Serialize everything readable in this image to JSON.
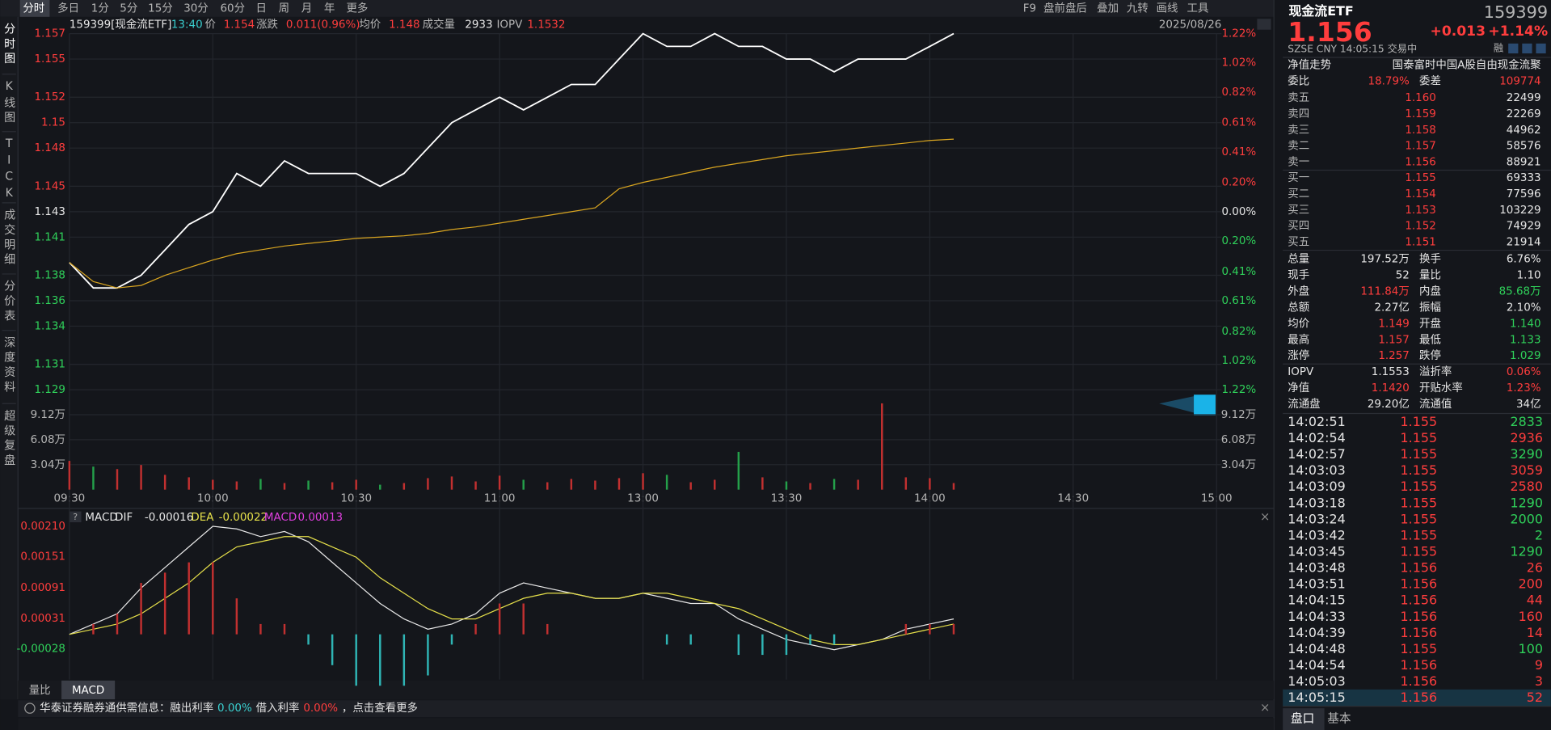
{
  "toolbar": {
    "tabs": [
      "分时",
      "多日",
      "1分",
      "5分",
      "15分",
      "30分",
      "60分",
      "日",
      "周",
      "月",
      "年",
      "更多"
    ],
    "tools": [
      "F9",
      "盘前盘后",
      "叠加",
      "九转",
      "画线",
      "工具"
    ]
  },
  "sidebar": [
    "分时图",
    "K线图",
    "TICK",
    "成交明细",
    "分价表",
    "深度资料",
    "超级复盘"
  ],
  "infobar": {
    "code": "159399[现金流ETF]",
    "time": "13:40",
    "items": [
      {
        "label": "价",
        "value": "1.154",
        "color": "red"
      },
      {
        "label": "涨跌",
        "value": "0.011(0.96%)",
        "color": "red"
      },
      {
        "label": "均价",
        "value": "1.148",
        "color": "red"
      },
      {
        "label": "成交量",
        "value": "2933",
        "color": "white"
      },
      {
        "label": "IOPV",
        "value": "1.1532",
        "color": "red"
      }
    ],
    "date": "2025/08/26"
  },
  "chart_data": [
    {
      "type": "line",
      "x": [
        "09:30",
        "09:35",
        "09:40",
        "09:45",
        "09:50",
        "09:55",
        "10:00",
        "10:05",
        "10:10",
        "10:15",
        "10:20",
        "10:25",
        "10:30",
        "10:35",
        "10:40",
        "10:45",
        "10:50",
        "10:55",
        "11:00",
        "11:05",
        "11:10",
        "11:15",
        "11:20",
        "11:25",
        "13:00",
        "13:05",
        "13:10",
        "13:15",
        "13:20",
        "13:25",
        "13:30",
        "13:35",
        "13:40",
        "13:45",
        "13:50",
        "13:55",
        "14:00",
        "14:05"
      ],
      "xticks": [
        "09:30",
        "10:00",
        "10:30",
        "11:00",
        "13:00",
        "13:30",
        "14:00",
        "14:30",
        "15:00"
      ],
      "series": [
        {
          "color": "#ffffff",
          "values": [
            1.139,
            1.137,
            1.137,
            1.138,
            1.14,
            1.142,
            1.143,
            1.146,
            1.145,
            1.147,
            1.146,
            1.146,
            1.146,
            1.145,
            1.146,
            1.148,
            1.15,
            1.151,
            1.152,
            1.151,
            1.152,
            1.153,
            1.153,
            1.155,
            1.157,
            1.156,
            1.156,
            1.157,
            1.156,
            1.156,
            1.155,
            1.155,
            1.154,
            1.155,
            1.155,
            1.155,
            1.156,
            1.157
          ]
        },
        {
          "color": "#d9a520",
          "values": [
            1.139,
            1.1375,
            1.137,
            1.1372,
            1.138,
            1.1386,
            1.1392,
            1.1397,
            1.14,
            1.1403,
            1.1405,
            1.1407,
            1.1409,
            1.141,
            1.1411,
            1.1413,
            1.1416,
            1.1418,
            1.1421,
            1.1424,
            1.1427,
            1.143,
            1.1433,
            1.1448,
            1.1453,
            1.1457,
            1.1461,
            1.1465,
            1.1468,
            1.1471,
            1.1474,
            1.1476,
            1.1478,
            1.148,
            1.1482,
            1.1484,
            1.1486,
            1.1487
          ]
        }
      ],
      "ylim": [
        1.129,
        1.157
      ],
      "yticks": [
        1.157,
        1.155,
        1.152,
        1.15,
        1.148,
        1.145,
        1.143,
        1.141,
        1.138,
        1.136,
        1.134,
        1.131,
        1.129
      ],
      "y2lim": [
        -1.22,
        1.22
      ],
      "y2ticks": [
        {
          "value": 1.22,
          "label": "1.22%"
        },
        {
          "value": 1.02,
          "label": "1.02%"
        },
        {
          "value": 0.82,
          "label": "0.82%"
        },
        {
          "value": 0.61,
          "label": "0.61%"
        },
        {
          "value": 0.41,
          "label": "0.41%"
        },
        {
          "value": 0.2,
          "label": "0.20%"
        },
        {
          "value": 0,
          "label": "0.00%"
        },
        {
          "value": -0.2,
          "label": "0.20%"
        },
        {
          "value": -0.41,
          "label": "0.41%"
        },
        {
          "value": -0.61,
          "label": "0.61%"
        },
        {
          "value": -0.82,
          "label": "0.82%"
        },
        {
          "value": -1.02,
          "label": "1.02%"
        },
        {
          "value": -1.22,
          "label": "1.22%"
        }
      ],
      "grid": true
    },
    {
      "type": "bar",
      "x": [
        "09:30",
        "09:35",
        "09:40",
        "09:45",
        "09:50",
        "09:55",
        "10:00",
        "10:05",
        "10:10",
        "10:15",
        "10:20",
        "10:25",
        "10:30",
        "10:35",
        "10:40",
        "10:45",
        "10:50",
        "10:55",
        "11:00",
        "11:05",
        "11:10",
        "11:15",
        "11:20",
        "11:25",
        "13:00",
        "13:05",
        "13:10",
        "13:15",
        "13:20",
        "13:25",
        "13:30",
        "13:35",
        "13:40",
        "13:45",
        "13:50",
        "13:55",
        "14:00",
        "14:05"
      ],
      "values": [
        3.5,
        2.8,
        2.5,
        3.0,
        1.8,
        1.5,
        1.2,
        1.0,
        1.3,
        0.8,
        1.1,
        0.9,
        1.2,
        0.6,
        0.8,
        1.4,
        1.6,
        1.0,
        1.7,
        1.2,
        0.9,
        1.3,
        1.1,
        1.4,
        2.0,
        1.8,
        0.9,
        1.2,
        4.6,
        1.5,
        1.0,
        0.8,
        1.3,
        1.2,
        10.5,
        1.5,
        1.4,
        0.8
      ],
      "ylim": [
        0,
        12.16
      ],
      "yticks": [
        {
          "value": 9.12,
          "label": "9.12万"
        },
        {
          "value": 6.08,
          "label": "6.08万"
        },
        {
          "value": 3.04,
          "label": "3.04万"
        }
      ]
    },
    {
      "type": "line",
      "title": "MACD",
      "x": [
        "09:30",
        "09:35",
        "09:40",
        "09:45",
        "09:50",
        "09:55",
        "10:00",
        "10:05",
        "10:10",
        "10:15",
        "10:20",
        "10:25",
        "10:30",
        "10:35",
        "10:40",
        "10:45",
        "10:50",
        "10:55",
        "11:00",
        "11:05",
        "11:10",
        "11:15",
        "11:20",
        "11:25",
        "13:00",
        "13:05",
        "13:10",
        "13:15",
        "13:20",
        "13:25",
        "13:30",
        "13:35",
        "13:40",
        "13:45",
        "13:50",
        "13:55",
        "14:00",
        "14:05"
      ],
      "series": [
        {
          "name": "DIF",
          "value_label": "-0.00016",
          "color": "#e8e8e8",
          "values": [
            0,
            0.0002,
            0.0004,
            0.0009,
            0.0013,
            0.0017,
            0.0021,
            0.00205,
            0.0019,
            0.002,
            0.0018,
            0.0014,
            0.001,
            0.0006,
            0.0003,
            0.0001,
            0.0002,
            0.0004,
            0.0008,
            0.001,
            0.0009,
            0.0008,
            0.0007,
            0.0007,
            0.0008,
            0.0007,
            0.0006,
            0.0006,
            0.0003,
            0.0001,
            -0.0001,
            -0.0002,
            -0.0003,
            -0.0002,
            -0.0001,
            0.0001,
            0.0002,
            0.0003
          ]
        },
        {
          "name": "DEA",
          "value_label": "-0.00022",
          "color": "#e6e04a",
          "values": [
            0,
            0.0001,
            0.0002,
            0.0004,
            0.0007,
            0.001,
            0.0014,
            0.0017,
            0.0018,
            0.0019,
            0.0019,
            0.0017,
            0.0015,
            0.0011,
            0.0008,
            0.0005,
            0.0003,
            0.0003,
            0.0005,
            0.0007,
            0.0008,
            0.0008,
            0.0007,
            0.0007,
            0.0008,
            0.0008,
            0.0007,
            0.0006,
            0.0005,
            0.0003,
            0.0001,
            -0.0001,
            -0.0002,
            -0.0002,
            -0.0001,
            0,
            0.0001,
            0.0002
          ]
        },
        {
          "name": "MACD",
          "type": "bar",
          "value_label": "0.00013",
          "color": "#e040e0",
          "values": [
            0,
            0.0002,
            0.0004,
            0.001,
            0.0012,
            0.0014,
            0.0014,
            0.0007,
            0.0002,
            0.0002,
            -0.0002,
            -0.0006,
            -0.001,
            -0.001,
            -0.001,
            -0.0008,
            -0.0002,
            0.0002,
            0.0006,
            0.0006,
            0.0002,
            0,
            0,
            0,
            0,
            -0.0002,
            -0.0002,
            0,
            -0.0004,
            -0.0004,
            -0.0004,
            -0.0002,
            -0.0002,
            0,
            0,
            0.0002,
            0.0002,
            0.0002
          ]
        }
      ],
      "ylim": [
        -0.00088,
        0.00243
      ],
      "yticks": [
        {
          "value": 0.0021,
          "label": "0.00210"
        },
        {
          "value": 0.00151,
          "label": "0.00151"
        },
        {
          "value": 0.00091,
          "label": "0.00091"
        },
        {
          "value": 0.00031,
          "label": "0.00031"
        },
        {
          "value": -0.00028,
          "label": "-0.00028"
        }
      ]
    }
  ],
  "bottom_tabs": [
    "量比",
    "MACD"
  ],
  "footer": [
    {
      "text": "华泰证券融券通供需信息：融出利率",
      "color": "white"
    },
    {
      "text": "0.00%",
      "color": "cyan"
    },
    {
      "text": "借入利率",
      "color": "white"
    },
    {
      "text": "0.00%",
      "color": "red"
    },
    {
      "text": "，点击查看更多",
      "color": "white"
    }
  ],
  "quote": {
    "name": "现金流ETF",
    "code": "159399",
    "price": "1.156",
    "change": "+0.013",
    "pct": "+1.14%",
    "status": "SZSE  CNY  14:05:15  交易中",
    "flag": "融",
    "nav_label": "净值走势",
    "fund_name": "国泰富时中国A股自由现金流聚",
    "ratio": [
      {
        "label": "委比",
        "value": "18.79%",
        "color": "red"
      },
      {
        "label": "委差",
        "value": "109774",
        "color": "red"
      }
    ]
  },
  "book": {
    "asks": [
      {
        "label": "卖五",
        "price": "1.160",
        "volume": "22499"
      },
      {
        "label": "卖四",
        "price": "1.159",
        "volume": "22269"
      },
      {
        "label": "卖三",
        "price": "1.158",
        "volume": "44962"
      },
      {
        "label": "卖二",
        "price": "1.157",
        "volume": "58576"
      },
      {
        "label": "卖一",
        "price": "1.156",
        "volume": "88921"
      }
    ],
    "bids": [
      {
        "label": "买一",
        "price": "1.155",
        "volume": "69333"
      },
      {
        "label": "买二",
        "price": "1.154",
        "volume": "77596"
      },
      {
        "label": "买三",
        "price": "1.153",
        "volume": "103229"
      },
      {
        "label": "买四",
        "price": "1.152",
        "volume": "74929"
      },
      {
        "label": "买五",
        "price": "1.151",
        "volume": "21914"
      }
    ]
  },
  "stats": [
    [
      {
        "label": "总量",
        "value": "197.52万",
        "color": "white"
      },
      {
        "label": "换手",
        "value": "6.76%",
        "color": "white"
      }
    ],
    [
      {
        "label": "现手",
        "value": "52",
        "color": "white"
      },
      {
        "label": "量比",
        "value": "1.10",
        "color": "white"
      }
    ],
    [
      {
        "label": "外盘",
        "value": "111.84万",
        "color": "red"
      },
      {
        "label": "内盘",
        "value": "85.68万",
        "color": "green"
      }
    ],
    [
      {
        "label": "总额",
        "value": "2.27亿",
        "color": "white"
      },
      {
        "label": "振幅",
        "value": "2.10%",
        "color": "white"
      }
    ],
    [
      {
        "label": "均价",
        "value": "1.149",
        "color": "red"
      },
      {
        "label": "开盘",
        "value": "1.140",
        "color": "green"
      }
    ],
    [
      {
        "label": "最高",
        "value": "1.157",
        "color": "red"
      },
      {
        "label": "最低",
        "value": "1.133",
        "color": "green"
      }
    ],
    [
      {
        "label": "涨停",
        "value": "1.257",
        "color": "red"
      },
      {
        "label": "跌停",
        "value": "1.029",
        "color": "green"
      }
    ]
  ],
  "fund_stats": [
    [
      {
        "label": "IOPV",
        "value": "1.1553",
        "color": "white"
      },
      {
        "label": "溢折率",
        "value": "0.06%",
        "color": "red"
      }
    ],
    [
      {
        "label": "净值",
        "value": "1.1420",
        "color": "red"
      },
      {
        "label": "开贴水率",
        "value": "1.23%",
        "color": "red"
      }
    ],
    [
      {
        "label": "流通盘",
        "value": "29.20亿",
        "color": "white"
      },
      {
        "label": "流通值",
        "value": "34亿",
        "color": "white"
      }
    ]
  ],
  "trades": [
    {
      "time": "14:02:51",
      "price": "1.155",
      "volume": "2833",
      "color": "green"
    },
    {
      "time": "14:02:54",
      "price": "1.155",
      "volume": "2936",
      "color": "red"
    },
    {
      "time": "14:02:57",
      "price": "1.155",
      "volume": "3290",
      "color": "green"
    },
    {
      "time": "14:03:03",
      "price": "1.155",
      "volume": "3059",
      "color": "red"
    },
    {
      "time": "14:03:09",
      "price": "1.155",
      "volume": "2580",
      "color": "red"
    },
    {
      "time": "14:03:18",
      "price": "1.155",
      "volume": "1290",
      "color": "green"
    },
    {
      "time": "14:03:24",
      "price": "1.155",
      "volume": "2000",
      "color": "green"
    },
    {
      "time": "14:03:42",
      "price": "1.155",
      "volume": "2",
      "color": "green"
    },
    {
      "time": "14:03:45",
      "price": "1.155",
      "volume": "1290",
      "color": "green"
    },
    {
      "time": "14:03:48",
      "price": "1.156",
      "volume": "26",
      "color": "red"
    },
    {
      "time": "14:03:51",
      "price": "1.156",
      "volume": "200",
      "color": "red"
    },
    {
      "time": "14:04:15",
      "price": "1.156",
      "volume": "44",
      "color": "red"
    },
    {
      "time": "14:04:33",
      "price": "1.156",
      "volume": "160",
      "color": "red"
    },
    {
      "time": "14:04:39",
      "price": "1.156",
      "volume": "14",
      "color": "red"
    },
    {
      "time": "14:04:48",
      "price": "1.155",
      "volume": "100",
      "color": "green"
    },
    {
      "time": "14:04:54",
      "price": "1.156",
      "volume": "9",
      "color": "red"
    },
    {
      "time": "14:05:03",
      "price": "1.156",
      "volume": "3",
      "color": "red"
    },
    {
      "time": "14:05:15",
      "price": "1.156",
      "volume": "52",
      "color": "red"
    }
  ],
  "panel_tabs": [
    "盘口",
    "基本"
  ]
}
